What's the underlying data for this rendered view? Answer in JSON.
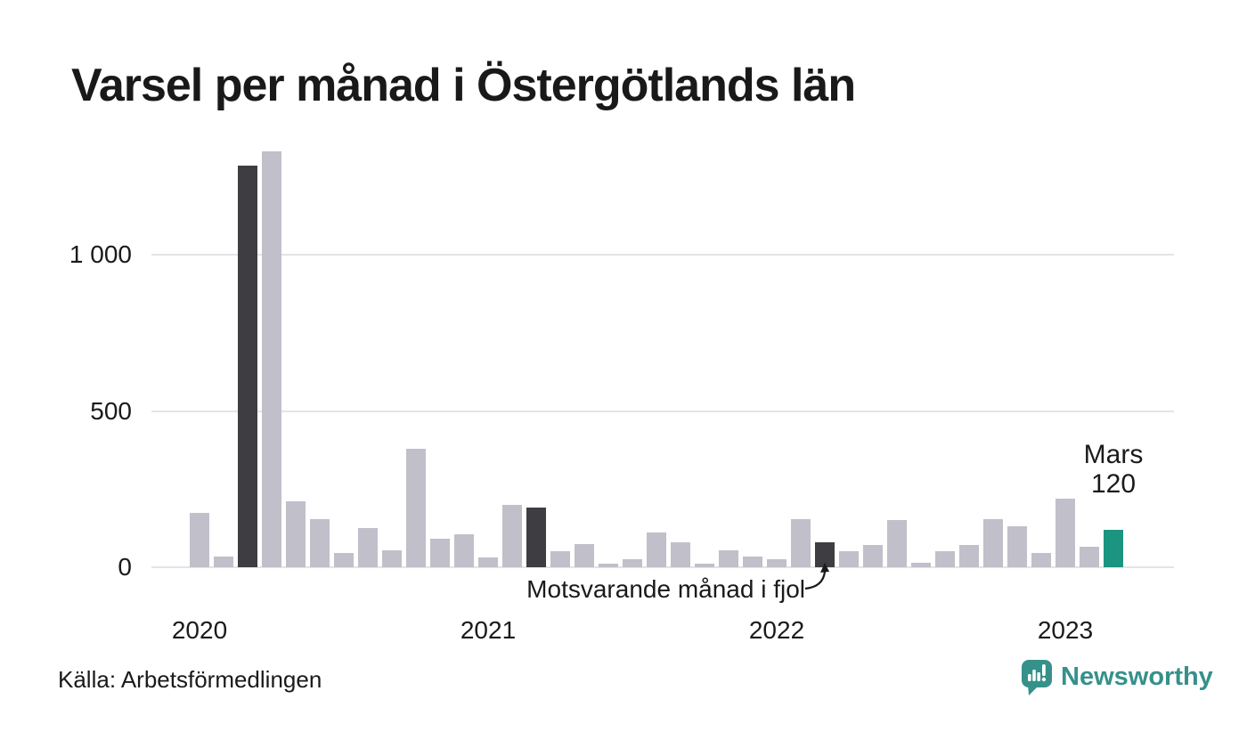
{
  "title": "Varsel per månad i Östergötlands län",
  "source_caption": "Källa: Arbetsförmedlingen",
  "brand": {
    "name": "Newsworthy",
    "color": "#36918a",
    "icon": "speech-bubble-bar-chart-icon"
  },
  "annotations": {
    "latest": {
      "label": "Mars",
      "value": "120",
      "target_month": "2023-03"
    },
    "comparison": {
      "text": "Motsvarande månad i fjol",
      "target_month": "2022-03"
    }
  },
  "chart_data": {
    "type": "bar",
    "title": "Varsel per månad i Östergötlands län",
    "xlabel": "",
    "ylabel": "",
    "ylim": [
      0,
      1400
    ],
    "grid": true,
    "legend": "none",
    "y_ticks": [
      {
        "value": 0,
        "label": "0"
      },
      {
        "value": 500,
        "label": "500"
      },
      {
        "value": 1000,
        "label": "1 000"
      }
    ],
    "x_year_ticks": [
      {
        "label": "2020",
        "month": "2020-01"
      },
      {
        "label": "2021",
        "month": "2021-01"
      },
      {
        "label": "2022",
        "month": "2022-01"
      },
      {
        "label": "2023",
        "month": "2023-01"
      }
    ],
    "colors": {
      "bar_default": "#c1bfca",
      "bar_march_highlight": "#3e3d41",
      "bar_latest": "#1b9480",
      "gridline": "#e4e4e7",
      "text": "#1a1a1a"
    },
    "months": [
      {
        "month": "2020-01",
        "value": 175,
        "role": "default"
      },
      {
        "month": "2020-02",
        "value": 35,
        "role": "default"
      },
      {
        "month": "2020-03",
        "value": 1285,
        "role": "march"
      },
      {
        "month": "2020-04",
        "value": 1330,
        "role": "default"
      },
      {
        "month": "2020-05",
        "value": 210,
        "role": "default"
      },
      {
        "month": "2020-06",
        "value": 155,
        "role": "default"
      },
      {
        "month": "2020-07",
        "value": 45,
        "role": "default"
      },
      {
        "month": "2020-08",
        "value": 125,
        "role": "default"
      },
      {
        "month": "2020-09",
        "value": 55,
        "role": "default"
      },
      {
        "month": "2020-10",
        "value": 380,
        "role": "default"
      },
      {
        "month": "2020-11",
        "value": 90,
        "role": "default"
      },
      {
        "month": "2020-12",
        "value": 105,
        "role": "default"
      },
      {
        "month": "2021-01",
        "value": 30,
        "role": "default"
      },
      {
        "month": "2021-02",
        "value": 200,
        "role": "default"
      },
      {
        "month": "2021-03",
        "value": 190,
        "role": "march"
      },
      {
        "month": "2021-04",
        "value": 50,
        "role": "default"
      },
      {
        "month": "2021-05",
        "value": 75,
        "role": "default"
      },
      {
        "month": "2021-06",
        "value": 10,
        "role": "default"
      },
      {
        "month": "2021-07",
        "value": 25,
        "role": "default"
      },
      {
        "month": "2021-08",
        "value": 110,
        "role": "default"
      },
      {
        "month": "2021-09",
        "value": 80,
        "role": "default"
      },
      {
        "month": "2021-10",
        "value": 10,
        "role": "default"
      },
      {
        "month": "2021-11",
        "value": 55,
        "role": "default"
      },
      {
        "month": "2021-12",
        "value": 35,
        "role": "default"
      },
      {
        "month": "2022-01",
        "value": 25,
        "role": "default"
      },
      {
        "month": "2022-02",
        "value": 155,
        "role": "default"
      },
      {
        "month": "2022-03",
        "value": 80,
        "role": "march"
      },
      {
        "month": "2022-04",
        "value": 50,
        "role": "default"
      },
      {
        "month": "2022-05",
        "value": 70,
        "role": "default"
      },
      {
        "month": "2022-06",
        "value": 150,
        "role": "default"
      },
      {
        "month": "2022-07",
        "value": 15,
        "role": "default"
      },
      {
        "month": "2022-08",
        "value": 50,
        "role": "default"
      },
      {
        "month": "2022-09",
        "value": 70,
        "role": "default"
      },
      {
        "month": "2022-10",
        "value": 155,
        "role": "default"
      },
      {
        "month": "2022-11",
        "value": 130,
        "role": "default"
      },
      {
        "month": "2022-12",
        "value": 45,
        "role": "default"
      },
      {
        "month": "2023-01",
        "value": 220,
        "role": "default"
      },
      {
        "month": "2023-02",
        "value": 65,
        "role": "default"
      },
      {
        "month": "2023-03",
        "value": 120,
        "role": "latest"
      }
    ]
  }
}
